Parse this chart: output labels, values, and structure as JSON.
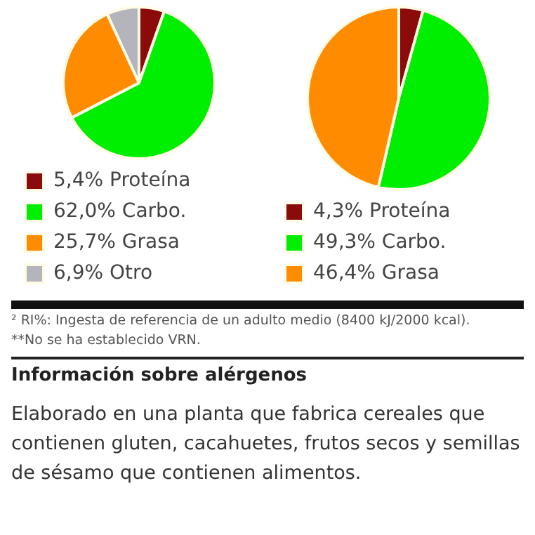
{
  "chart_data": [
    {
      "type": "pie",
      "categories": [
        "Proteína",
        "Carbo.",
        "Grasa",
        "Otro"
      ],
      "values": [
        5.4,
        62.0,
        25.7,
        6.9
      ],
      "value_labels": [
        "5,4%",
        "62,0%",
        "25,7%",
        "6,9%"
      ],
      "colors": [
        "#8b0a0a",
        "#00ee00",
        "#ff8c00",
        "#b4b4bc"
      ],
      "legend": "bottom"
    },
    {
      "type": "pie",
      "categories": [
        "Proteína",
        "Carbo.",
        "Grasa"
      ],
      "values": [
        4.3,
        49.3,
        46.4
      ],
      "value_labels": [
        "4,3%",
        "49,3%",
        "46,4%"
      ],
      "colors": [
        "#8b0a0a",
        "#00ee00",
        "#ff8c00"
      ],
      "legend": "bottom"
    },
    {
      "type": "other",
      "annotations": [
        "² RI%: Ingesta de referencia de un adulto medio (8400 kJ/2000 kcal).",
        "**No se ha establecido VRN."
      ]
    },
    {
      "type": "other",
      "title": "Información sobre alérgenos",
      "annotations": [
        "Elaborado en una planta que fabrica cereales que contienen gluten, cacahuetes, frutos secos y semillas de sésamo que contienen alimentos."
      ]
    }
  ]
}
